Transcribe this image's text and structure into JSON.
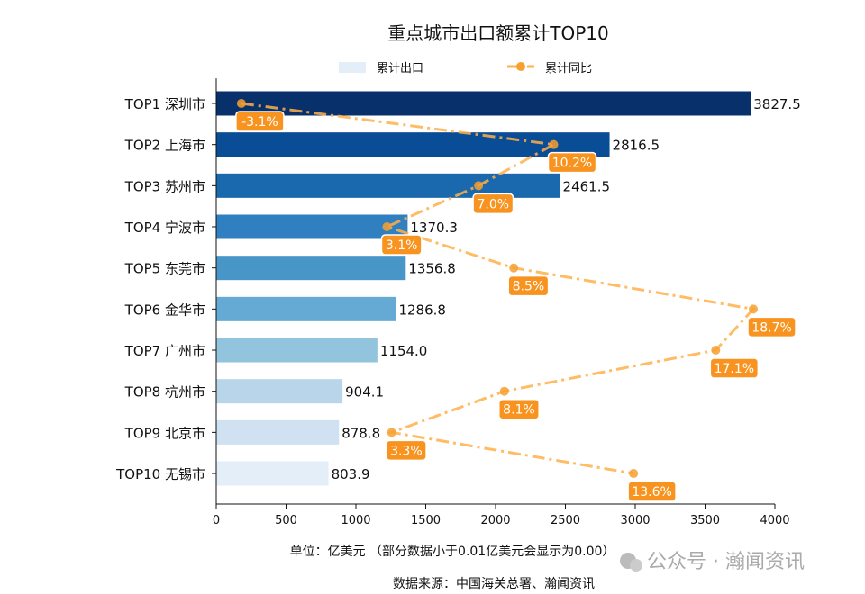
{
  "chart_data": {
    "type": "bar",
    "orientation": "horizontal",
    "title": "重点城市出口额累计TOP10",
    "categories": [
      "TOP1 深圳市",
      "TOP2 上海市",
      "TOP3 苏州市",
      "TOP4 宁波市",
      "TOP5 东莞市",
      "TOP6 金华市",
      "TOP7 广州市",
      "TOP8 杭州市",
      "TOP9 北京市",
      "TOP10 无锡市"
    ],
    "series": [
      {
        "name": "累计出口",
        "type": "bar",
        "values": [
          3827.5,
          2816.5,
          2461.5,
          1370.3,
          1356.8,
          1286.8,
          1154.0,
          904.1,
          878.8,
          803.9
        ],
        "labels": [
          "3827.5",
          "2816.5",
          "2461.5",
          "1370.3",
          "1356.8",
          "1286.8",
          "1154.0",
          "904.1",
          "878.8",
          "803.9"
        ],
        "colors": [
          "#08306b",
          "#084d96",
          "#1a68ae",
          "#2f7fc1",
          "#4896c8",
          "#65aad4",
          "#93c4de",
          "#b8d5ea",
          "#d0e1f2",
          "#e3eef8"
        ]
      },
      {
        "name": "累计同比",
        "type": "line",
        "axis": "secondary-x-hidden",
        "values": [
          -3.1,
          10.2,
          7.0,
          3.1,
          8.5,
          18.7,
          17.1,
          8.1,
          3.3,
          13.6
        ],
        "labels": [
          "-3.1%",
          "10.2%",
          "7.0%",
          "3.1%",
          "8.5%",
          "18.7%",
          "17.1%",
          "8.1%",
          "3.3%",
          "13.6%"
        ],
        "color": "#ffb04a",
        "label_bg": "#f7931e",
        "linestyle": "dashdot"
      }
    ],
    "xlim": [
      0,
      4000
    ],
    "xticks": [
      "0",
      "500",
      "1000",
      "1500",
      "2000",
      "2500",
      "3000",
      "3500",
      "4000"
    ],
    "xlim_secondary": [
      -4.17,
      19.62
    ],
    "legend": "top-center",
    "grid": false,
    "xlabel": "单位：亿美元   （部分数据小于0.01亿美元会显示为0.00）",
    "source": "数据来源：中国海关总署、瀚闻资讯",
    "watermark": "公众号 · 瀚闻资讯"
  }
}
